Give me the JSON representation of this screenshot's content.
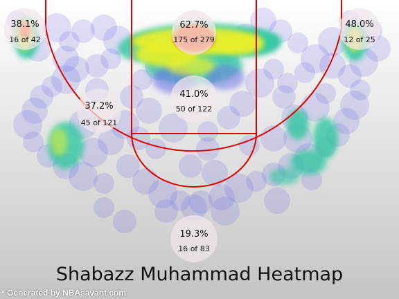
{
  "colors": {
    "background_top": "#ffffff",
    "background_bottom": "#c4c4c4",
    "court_lines": "#e00000",
    "zone_circle": "#f1e6ea",
    "heat_cool": "#6a6ae8",
    "heat_mid": "#2ec8a0",
    "heat_warm": "#e8ef2a",
    "heat_hot": "#ff3a00"
  },
  "chart_data": {
    "type": "heatmap",
    "title": "Shabazz Muhammad Heatmap",
    "zones": [
      {
        "id": "left-corner",
        "pct": "38.1%",
        "made_of": "16 of 42",
        "made": 16,
        "attempts": 42
      },
      {
        "id": "restricted-area",
        "pct": "62.7%",
        "made_of": "175 of 279",
        "made": 175,
        "attempts": 279
      },
      {
        "id": "right-corner",
        "pct": "48.0%",
        "made_of": "12 of 25",
        "made": 12,
        "attempts": 25
      },
      {
        "id": "left-midrange",
        "pct": "37.2%",
        "made_of": "45 of 121",
        "made": 45,
        "attempts": 121
      },
      {
        "id": "paint",
        "pct": "41.0%",
        "made_of": "50 of 122",
        "made": 50,
        "attempts": 122
      },
      {
        "id": "above-break-three",
        "pct": "19.3%",
        "made_of": "16 of 83",
        "made": 16,
        "attempts": 83
      }
    ]
  },
  "footer": {
    "credit": "* Generated by NBAsavant.com"
  }
}
